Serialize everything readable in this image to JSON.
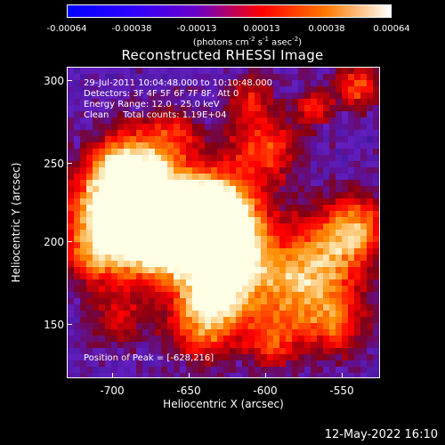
{
  "colorbar": {
    "ticks": [
      "-0.00064",
      "-0.00038",
      "-0.00013",
      "0.00013",
      "0.00038",
      "0.00064"
    ],
    "units_prefix": "(photons cm",
    "units_e1": "-2",
    "units_mid1": " s",
    "units_e2": "-1",
    "units_mid2": " asec",
    "units_e3": "-2",
    "units_suffix": ")",
    "colors": [
      "#0000ff",
      "#2e00ff",
      "#6a00c8",
      "#ff0000",
      "#ff7a00",
      "#ffffff"
    ]
  },
  "title": "Reconstructed RHESSI Image",
  "info": {
    "time": "29-Jul-2011 10:04:48.000 to 10:10:48.000",
    "detectors": "Detectors: 3F 4F 5F 6F 7F 8F, Att 0",
    "energy": "Energy Range: 12.0 - 25.0 keV",
    "clean": "Clean     Total counts: 1.19E+04",
    "peak": "Position of Peak = [-628,216]"
  },
  "axes": {
    "ylabel": "Heliocentric Y (arcsec)",
    "xlabel": "Heliocentric X (arcsec)",
    "yticks": [
      "300",
      "250",
      "200",
      "150"
    ],
    "xticks": [
      "-700",
      "-650",
      "-600",
      "-550"
    ]
  },
  "footer_date": "12-May-2022 16:10"
}
